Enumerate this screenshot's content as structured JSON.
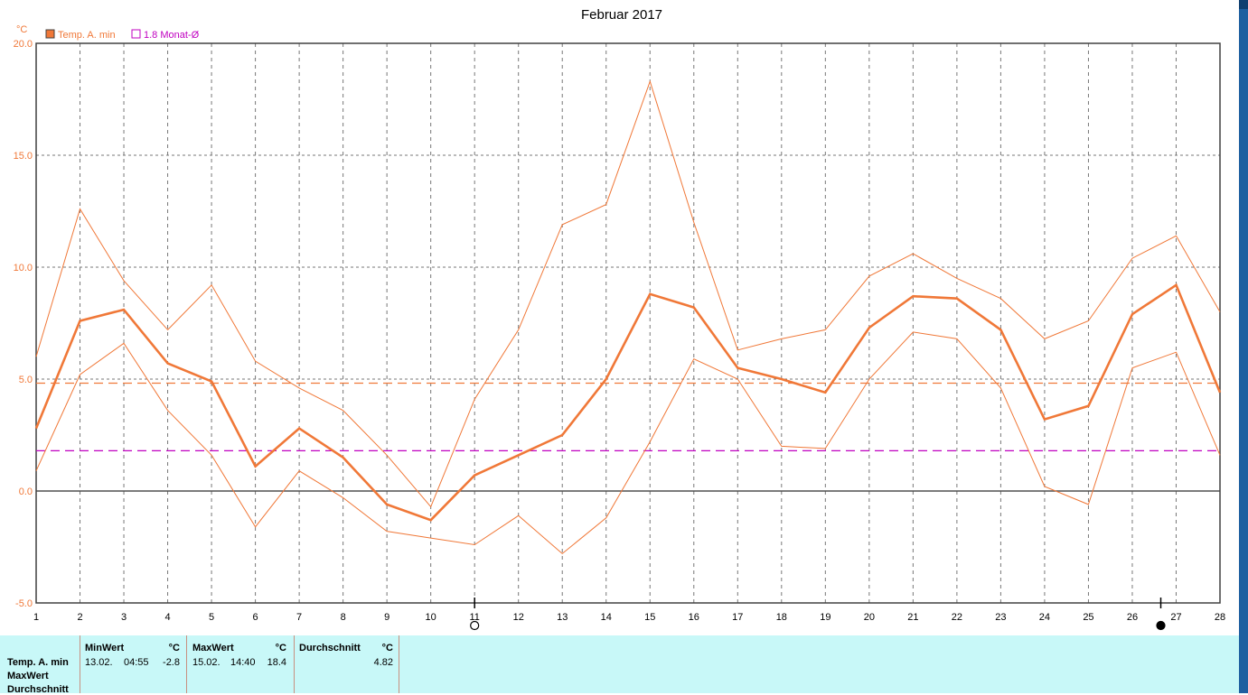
{
  "chart_data": {
    "type": "line",
    "title": "Februar 2017",
    "ylabel": "°C",
    "xlabel": "",
    "ylim": [
      -5.0,
      20.0
    ],
    "xlim": [
      1,
      28
    ],
    "y_ticks": [
      "20.0",
      "15.0",
      "10.0",
      "5.0",
      "0.0",
      "-5.0"
    ],
    "x": [
      1,
      2,
      3,
      4,
      5,
      6,
      7,
      8,
      9,
      10,
      11,
      12,
      13,
      14,
      15,
      16,
      17,
      18,
      19,
      20,
      21,
      22,
      23,
      24,
      25,
      26,
      27,
      28
    ],
    "legend": [
      {
        "label": "Temp. A. min",
        "color": "#f07838",
        "marker": "filled-square"
      },
      {
        "label": "1.8 Monat-Ø",
        "color": "#c000c0",
        "marker": "hollow-square"
      }
    ],
    "legend_position": "top-left",
    "grid": true,
    "series": [
      {
        "name": "Temp. A. min",
        "role": "main",
        "color": "#f07838",
        "values": [
          2.8,
          7.6,
          8.1,
          5.7,
          4.9,
          1.1,
          2.8,
          1.5,
          -0.6,
          -1.3,
          0.7,
          1.6,
          2.5,
          5.0,
          8.8,
          8.2,
          5.5,
          5.0,
          4.4,
          7.3,
          8.7,
          8.6,
          7.2,
          3.2,
          3.8,
          7.9,
          9.2,
          4.4
        ]
      },
      {
        "name": "",
        "role": "upper",
        "color": "#f07838",
        "values": [
          6.0,
          12.6,
          9.4,
          7.2,
          9.2,
          5.8,
          4.6,
          3.6,
          1.6,
          -0.7,
          4.1,
          7.2,
          11.9,
          12.8,
          18.3,
          12.0,
          6.3,
          6.8,
          7.2,
          9.6,
          10.6,
          9.5,
          8.6,
          6.8,
          7.6,
          10.4,
          11.4,
          8.0
        ]
      },
      {
        "name": "",
        "role": "lower",
        "color": "#f07838",
        "values": [
          0.9,
          5.2,
          6.6,
          3.6,
          1.6,
          -1.6,
          0.9,
          -0.3,
          -1.8,
          -2.1,
          -2.4,
          -1.1,
          -2.8,
          -1.2,
          2.2,
          5.9,
          5.0,
          2.0,
          1.9,
          5.0,
          7.1,
          6.8,
          4.6,
          0.2,
          -0.6,
          5.5,
          6.2,
          1.6
        ]
      }
    ],
    "reference_lines": [
      {
        "name": "Durchschnitt",
        "value": 4.82,
        "color": "#f07838",
        "style": "dashed"
      },
      {
        "name": "1.8 Monat-Ø",
        "value": 1.8,
        "color": "#c000c0",
        "style": "dashed"
      }
    ],
    "markers": [
      {
        "day": 11,
        "symbol": "open-circle"
      },
      {
        "day": 26.65,
        "symbol": "filled-circle"
      }
    ]
  },
  "summary": {
    "row_labels": [
      "Temp. A. min",
      "MaxWert",
      "Durchschnitt"
    ],
    "min": {
      "header": "MinWert",
      "unit": "°C",
      "date": "13.02.",
      "time": "04:55",
      "value": "-2.8"
    },
    "max": {
      "header": "MaxWert",
      "unit": "°C",
      "date": "15.02.",
      "time": "14:40",
      "value": "18.4"
    },
    "avg": {
      "header": "Durchschnitt",
      "unit": "°C",
      "value": "4.82"
    }
  }
}
